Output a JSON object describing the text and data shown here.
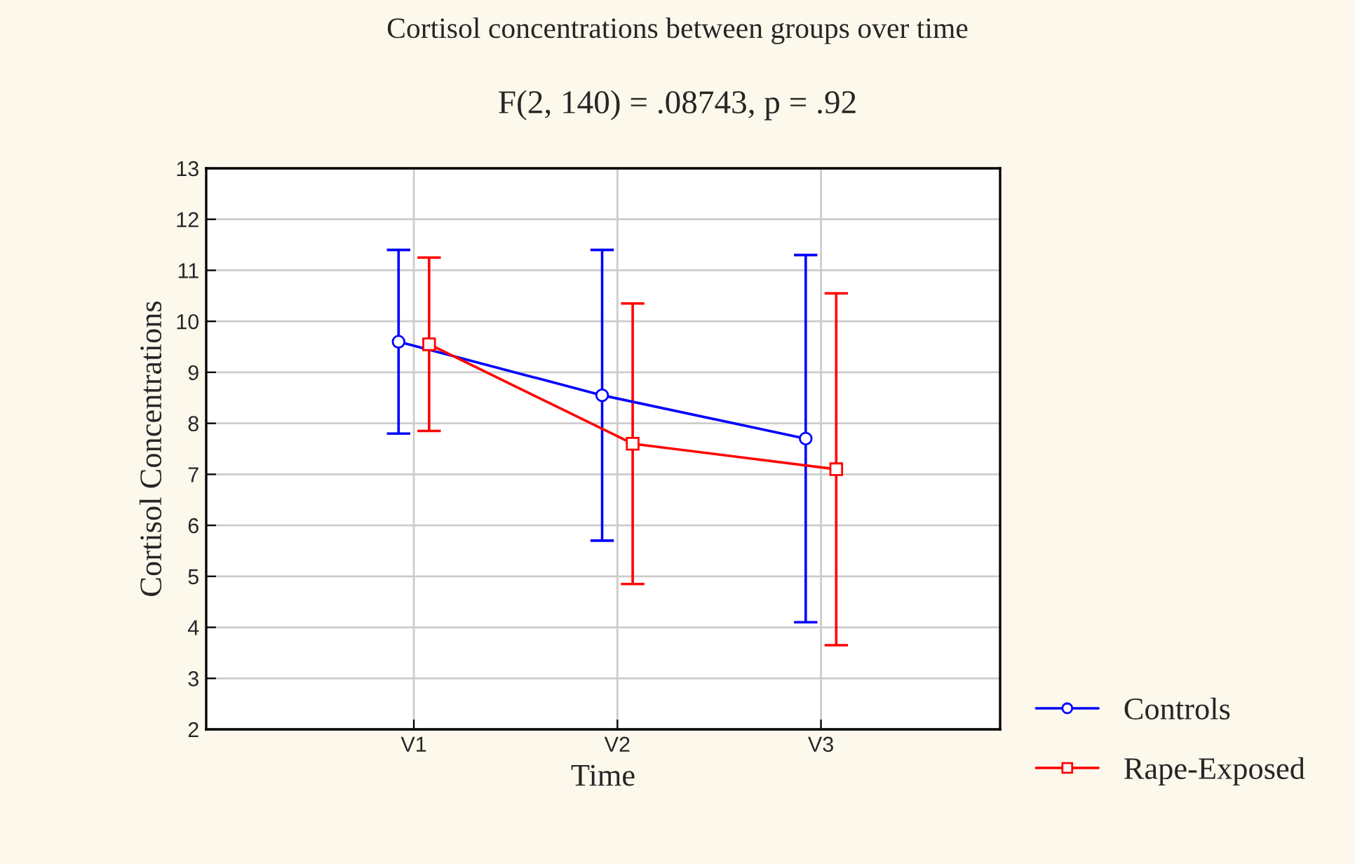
{
  "chart_data": {
    "type": "line",
    "title": "Cortisol concentrations between groups over time",
    "subtitle": "F(2, 140) = .08743, p = .92",
    "xlabel": "Time",
    "ylabel": "Cortisol Concentrations",
    "categories": [
      "V1",
      "V2",
      "V3"
    ],
    "series": [
      {
        "name": "Controls",
        "color": "#0000ff",
        "values": [
          9.6,
          8.55,
          7.7
        ],
        "errors": [
          1.8,
          2.85,
          3.6
        ],
        "marker": "circle"
      },
      {
        "name": "Rape-Exposed",
        "color": "#ff0000",
        "values": [
          9.55,
          7.6,
          7.1
        ],
        "errors": [
          1.7,
          2.75,
          3.45
        ],
        "marker": "square"
      }
    ],
    "ylim": [
      2,
      13
    ],
    "yticks": [
      2,
      3,
      4,
      5,
      6,
      7,
      8,
      9,
      10,
      11,
      12,
      13
    ],
    "grid": true,
    "legend": "bottom right",
    "line_style": "solid"
  }
}
